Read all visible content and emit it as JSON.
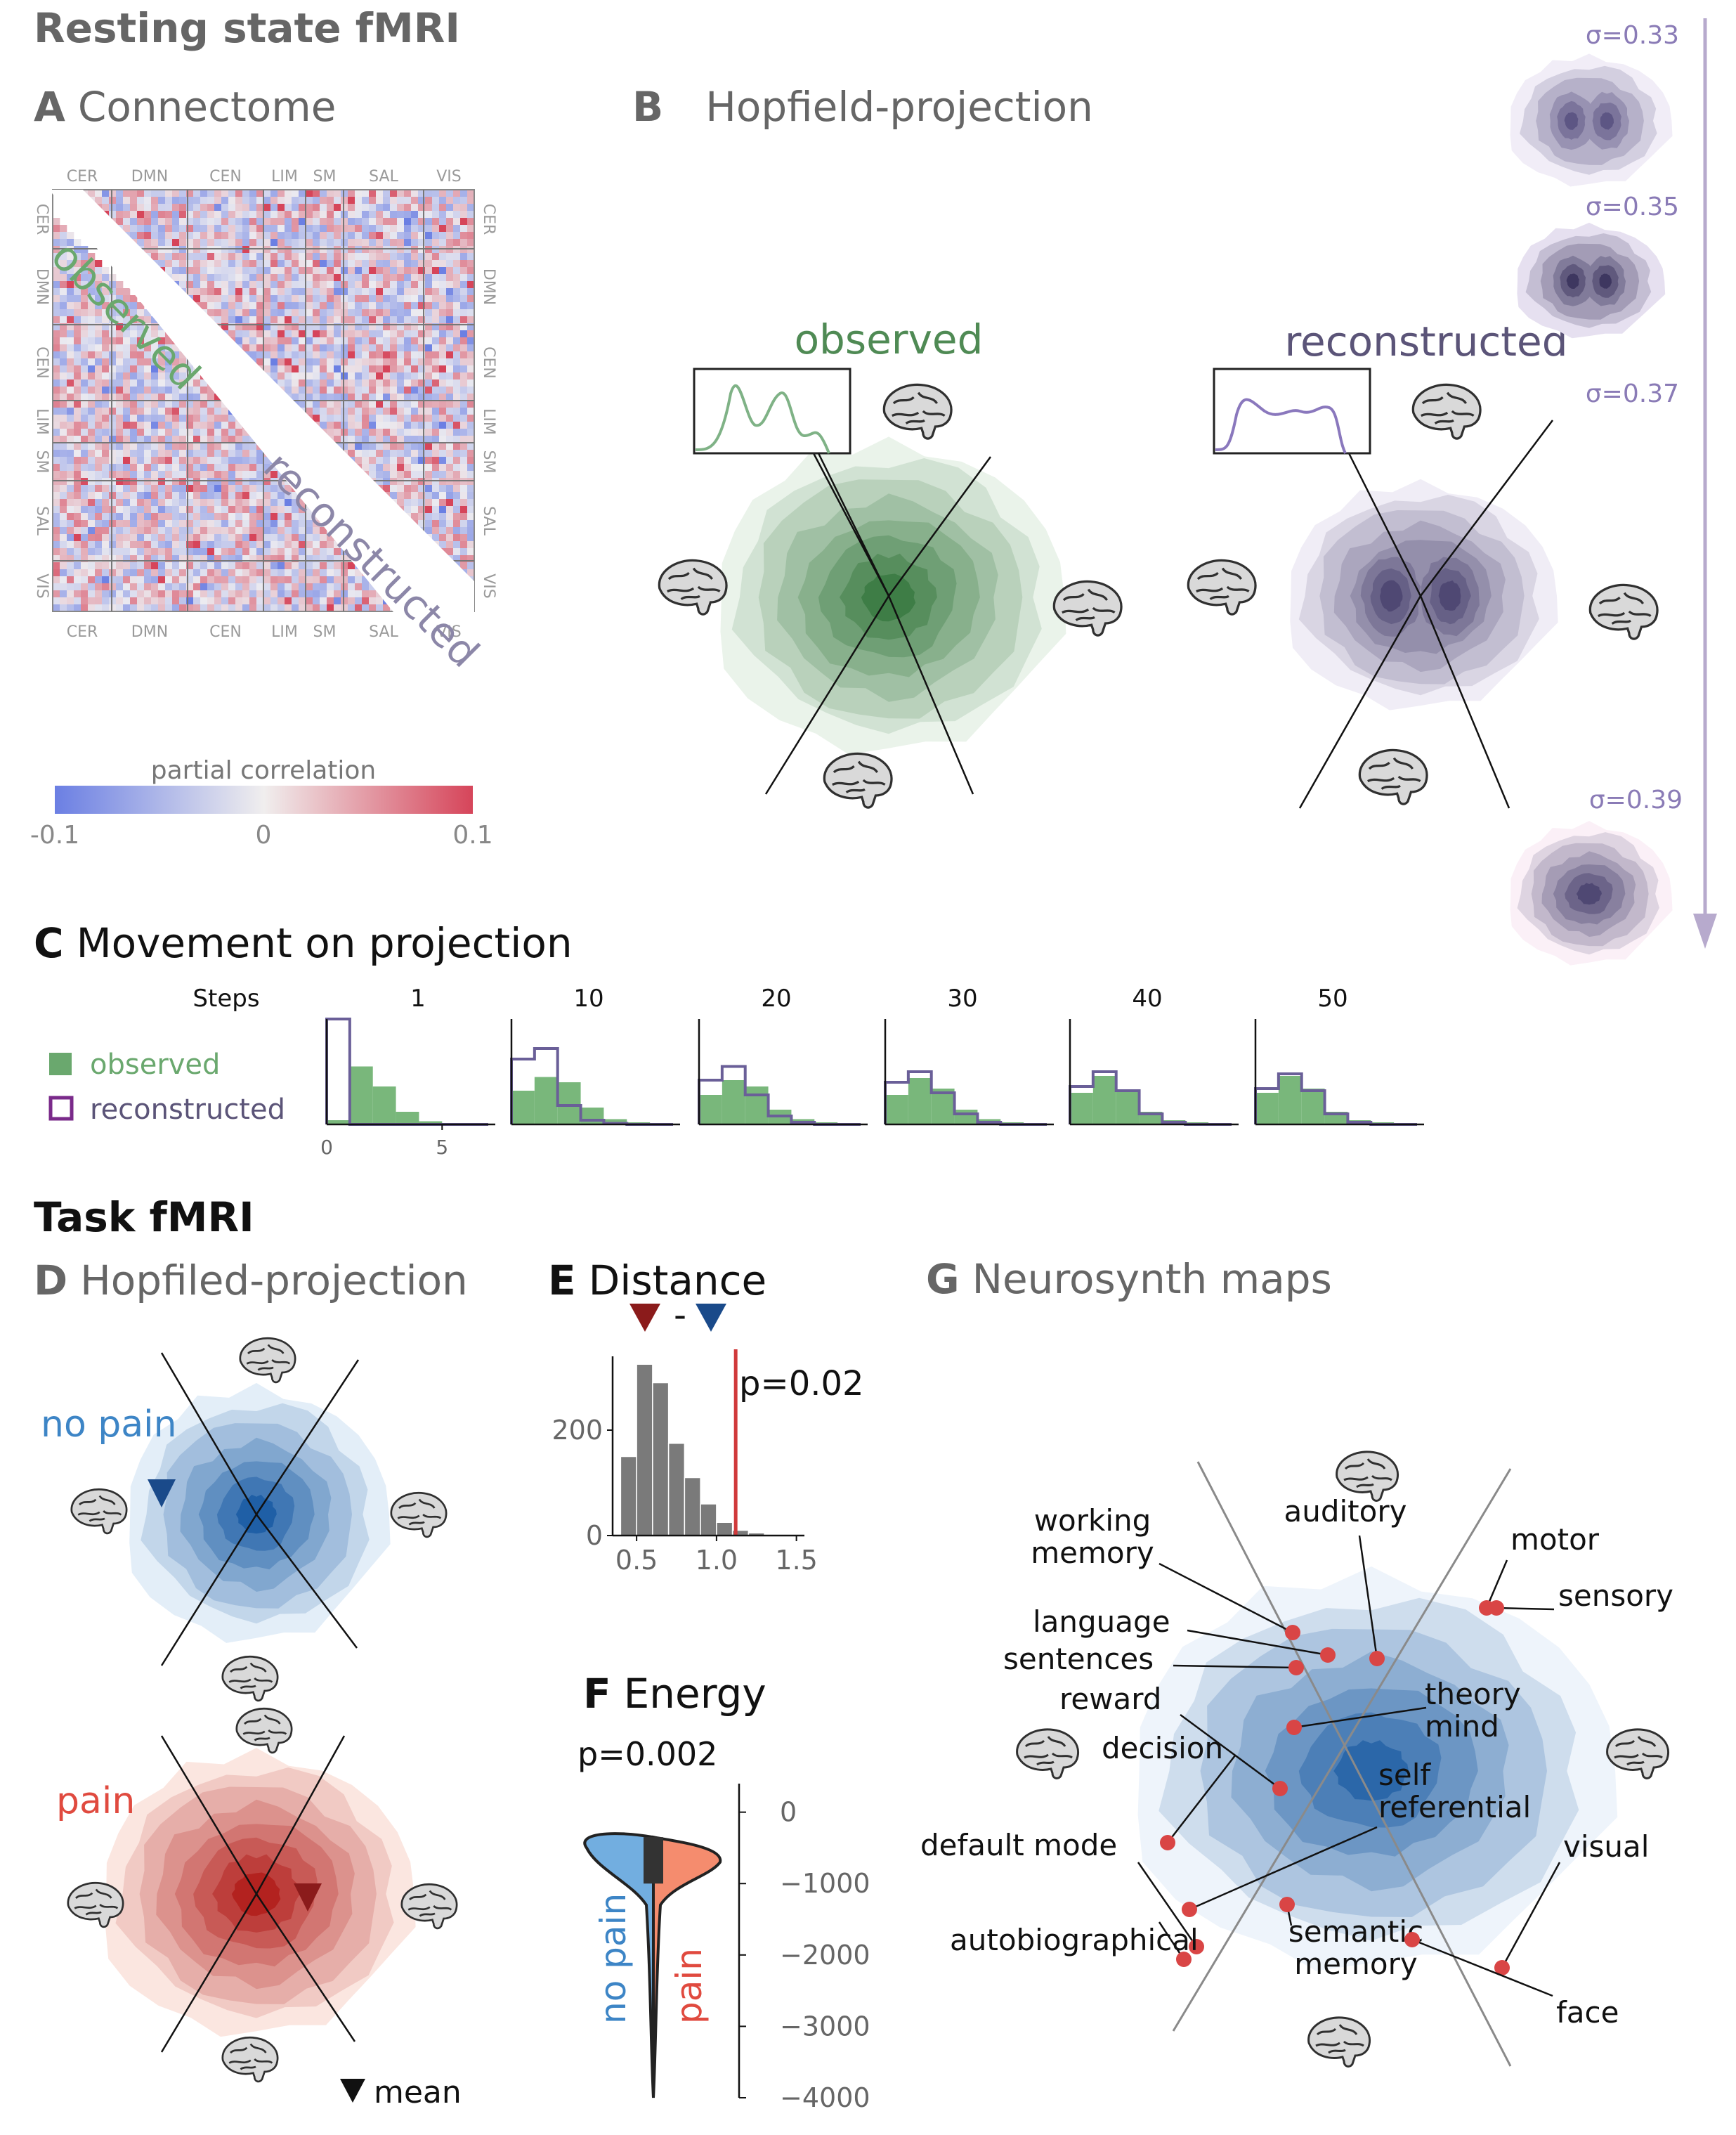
{
  "sections": {
    "rest": "Resting state fMRI",
    "task": "Task fMRI"
  },
  "panels": {
    "A": {
      "letter": "A",
      "title": "Connectome"
    },
    "B": {
      "letter": "B",
      "title": "Hopfield-projection"
    },
    "C": {
      "letter": "C",
      "title": "Movement on projection"
    },
    "D": {
      "letter": "D",
      "title": "Hopfiled-projection"
    },
    "E": {
      "letter": "E",
      "title": "Distance"
    },
    "F": {
      "letter": "F",
      "title": "Energy"
    },
    "G": {
      "letter": "G",
      "title": "Neurosynth maps"
    }
  },
  "colors": {
    "observed": "#6aa86e",
    "reconstructed": "#6a5f98",
    "nopain": "#3d85c6",
    "pain": "#e04a3f",
    "red_line": "#d0393a",
    "neg": "#6b7fe3",
    "pos": "#d6455a"
  },
  "icons": [
    "brain-icon",
    "triangle-down-icon"
  ],
  "chart_data": [
    {
      "id": "A",
      "type": "heatmap",
      "title": "Connectome",
      "networks": [
        "CER",
        "DMN",
        "CEN",
        "LIM",
        "SM",
        "SAL",
        "VIS"
      ],
      "upper_label": "observed",
      "lower_label": "reconstructed",
      "colorbar": {
        "label": "partial correlation",
        "ticks": [
          "-0.1",
          "0",
          "0.1"
        ],
        "range": [
          -0.1,
          0.1
        ]
      }
    },
    {
      "id": "B",
      "type": "heatmap",
      "title": "Hopfield-projection",
      "maps": [
        {
          "name": "observed",
          "color": "green"
        },
        {
          "name": "reconstructed",
          "color": "purple"
        }
      ],
      "sigma_labels": [
        "σ=0.33",
        "σ=0.35",
        "σ=0.37",
        "σ=0.39"
      ]
    },
    {
      "id": "C",
      "type": "bar",
      "title": "Movement on projection",
      "steps_label": "Steps",
      "steps": [
        "1",
        "10",
        "20",
        "30",
        "40",
        "50"
      ],
      "x_ticks": [
        "0",
        "5"
      ],
      "legend": [
        "observed",
        "reconstructed"
      ],
      "bins": [
        0,
        1,
        2,
        3,
        4,
        5,
        6,
        7
      ],
      "series": [
        {
          "step": "1",
          "observed": [
            0.04,
            0.55,
            0.36,
            0.12,
            0.03,
            0.01,
            0,
            0
          ],
          "reconstructed": [
            1.0,
            0,
            0,
            0,
            0,
            0,
            0,
            0
          ]
        },
        {
          "step": "10",
          "observed": [
            0.32,
            0.45,
            0.4,
            0.16,
            0.05,
            0.02,
            0.01,
            0
          ],
          "reconstructed": [
            0.62,
            0.72,
            0.18,
            0.04,
            0.01,
            0,
            0,
            0
          ]
        },
        {
          "step": "20",
          "observed": [
            0.28,
            0.42,
            0.36,
            0.14,
            0.05,
            0.02,
            0.01,
            0
          ],
          "reconstructed": [
            0.42,
            0.55,
            0.28,
            0.08,
            0.02,
            0,
            0,
            0
          ]
        },
        {
          "step": "30",
          "observed": [
            0.28,
            0.44,
            0.34,
            0.14,
            0.05,
            0.02,
            0.01,
            0
          ],
          "reconstructed": [
            0.4,
            0.5,
            0.3,
            0.1,
            0.02,
            0,
            0,
            0
          ]
        },
        {
          "step": "40",
          "observed": [
            0.3,
            0.46,
            0.32,
            0.12,
            0.04,
            0.02,
            0.01,
            0
          ],
          "reconstructed": [
            0.36,
            0.5,
            0.32,
            0.1,
            0.02,
            0,
            0,
            0
          ]
        },
        {
          "step": "50",
          "observed": [
            0.3,
            0.46,
            0.34,
            0.12,
            0.04,
            0.02,
            0.01,
            0
          ],
          "reconstructed": [
            0.34,
            0.48,
            0.32,
            0.1,
            0.02,
            0,
            0,
            0
          ]
        }
      ]
    },
    {
      "id": "D",
      "type": "heatmap",
      "title": "Hopfiled-projection",
      "maps": [
        {
          "name": "no pain",
          "color": "blue"
        },
        {
          "name": "pain",
          "color": "red"
        }
      ],
      "marker_label": "mean"
    },
    {
      "id": "E",
      "type": "bar",
      "title": "Distance",
      "x": [
        0.45,
        0.55,
        0.65,
        0.75,
        0.85,
        0.95,
        1.05,
        1.15,
        1.25,
        1.35
      ],
      "values": [
        150,
        325,
        290,
        175,
        110,
        60,
        25,
        10,
        5,
        2
      ],
      "xlim": [
        0.35,
        1.55
      ],
      "ylim": [
        0,
        340
      ],
      "x_ticks": [
        "0.5",
        "1.0",
        "1.5"
      ],
      "y_ticks": [
        "0",
        "200"
      ],
      "observed_value": 1.12,
      "p_label": "p=0.02"
    },
    {
      "id": "F",
      "type": "area",
      "title": "Energy",
      "p_label": "p=0.002",
      "ylim": [
        -4000,
        400
      ],
      "y_ticks": [
        "0",
        "−1000",
        "−2000",
        "−3000",
        "−4000"
      ],
      "groups": [
        "no pain",
        "pain"
      ]
    },
    {
      "id": "G",
      "type": "scatter",
      "title": "Neurosynth maps",
      "terms": [
        "working memory",
        "auditory",
        "motor",
        "sensory",
        "language",
        "sentences",
        "theory mind",
        "reward",
        "decision",
        "self referential",
        "default mode",
        "visual",
        "autobiographical",
        "semantic memory",
        "face"
      ]
    }
  ]
}
